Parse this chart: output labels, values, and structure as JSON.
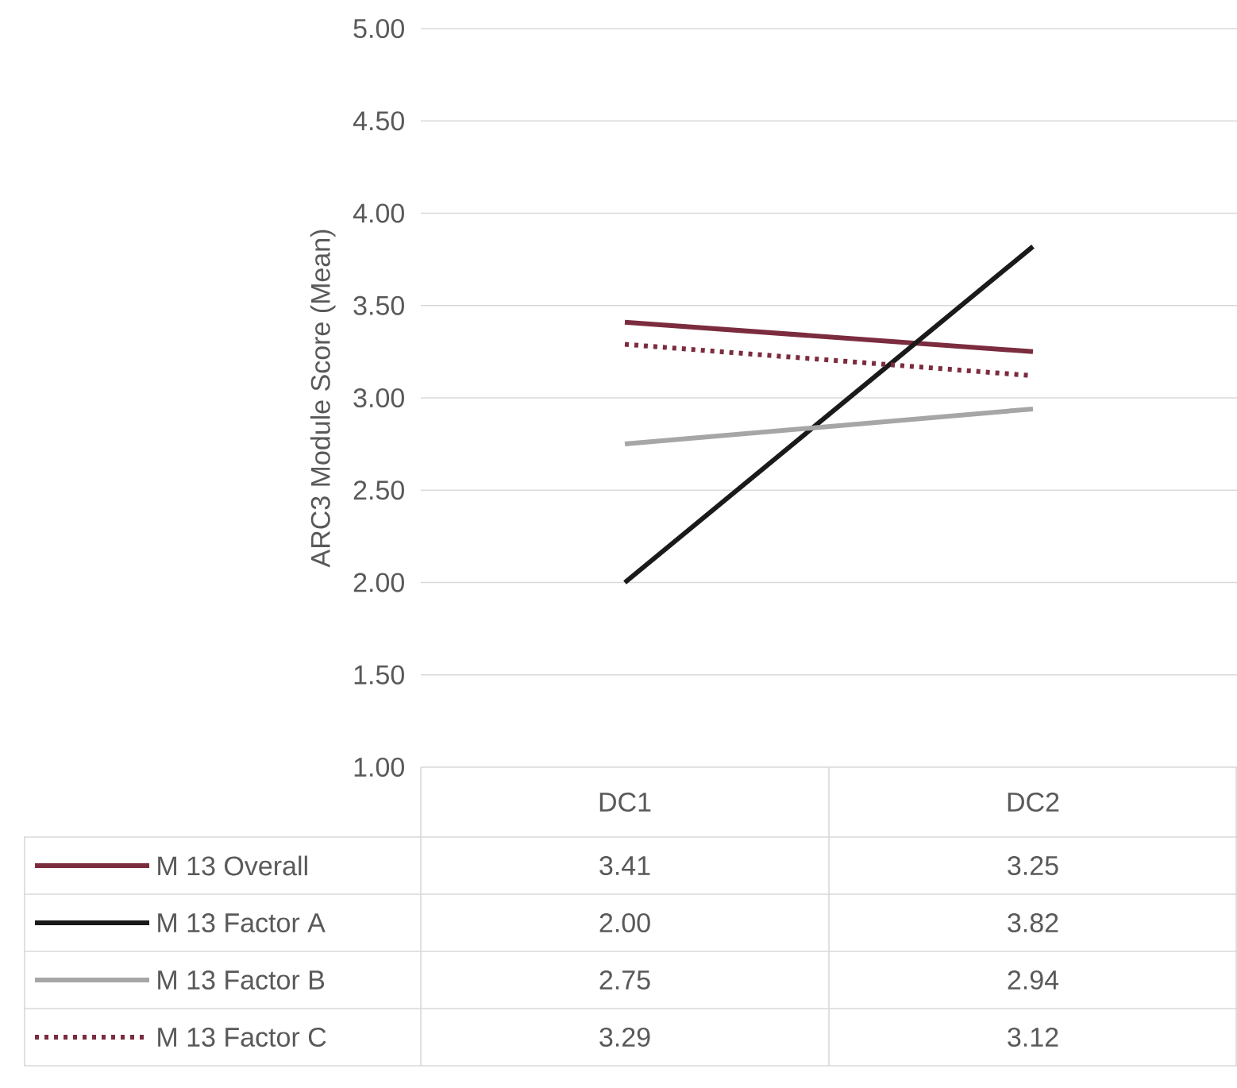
{
  "chart_data": {
    "type": "line",
    "ylabel": "ARC3 Module Score (Mean)",
    "categories": [
      "DC1",
      "DC2"
    ],
    "series": [
      {
        "name": "M 13 Overall",
        "color": "#7b2c3e",
        "values": [
          3.41,
          3.25
        ],
        "value_labels": [
          "3.41",
          "3.25"
        ]
      },
      {
        "name": "M 13 Factor A",
        "color": "#1a1a1a",
        "values": [
          2.0,
          3.82
        ],
        "value_labels": [
          "2.00",
          "3.82"
        ]
      },
      {
        "name": "M 13 Factor B",
        "color": "#a6a6a6",
        "values": [
          2.75,
          2.94
        ],
        "value_labels": [
          "2.75",
          "2.94"
        ]
      },
      {
        "name": "M 13 Factor C",
        "color": "#7b2c3e",
        "values": [
          3.29,
          3.12
        ],
        "value_labels": [
          "3.29",
          "3.12"
        ],
        "line_style": "dotted"
      }
    ],
    "ylim": [
      1,
      5
    ],
    "yticks": [
      {
        "value": 1,
        "label": "1.00"
      },
      {
        "value": 1.5,
        "label": "1.50"
      },
      {
        "value": 2,
        "label": "2.00"
      },
      {
        "value": 2.5,
        "label": "2.50"
      },
      {
        "value": 3,
        "label": "3.00"
      },
      {
        "value": 3.5,
        "label": "3.50"
      },
      {
        "value": 4,
        "label": "4.00"
      },
      {
        "value": 4.5,
        "label": "4.50"
      },
      {
        "value": 5,
        "label": "5.00"
      }
    ],
    "grid": "y",
    "legend": "bottom",
    "line_style": "solid"
  }
}
